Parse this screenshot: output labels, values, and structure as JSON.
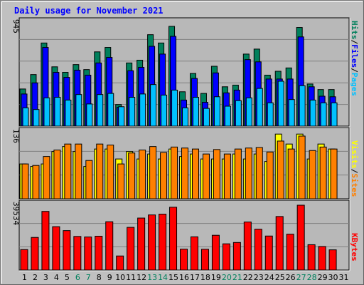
{
  "title": "Daily usage for November 2021",
  "colors": {
    "background": "#C0C0C0",
    "plot_bg": "#B8B8B8",
    "title": "#0000FF",
    "hits": "#00805C",
    "files": "#0000FF",
    "pages": "#00C0FF",
    "visits": "#FFFF00",
    "sites": "#FF8000",
    "kbytes": "#FF0000",
    "weekend_label": "#00805C",
    "weekday_label": "#000000"
  },
  "chart_data": [
    {
      "type": "bar",
      "panel": "hits-files-pages",
      "categories": [
        "1",
        "2",
        "3",
        "4",
        "5",
        "6",
        "7",
        "8",
        "9",
        "10",
        "11",
        "12",
        "13",
        "14",
        "15",
        "16",
        "17",
        "18",
        "19",
        "20",
        "21",
        "22",
        "23",
        "24",
        "25",
        "26",
        "27",
        "28",
        "29",
        "30",
        "31"
      ],
      "weekend_days": [
        "6",
        "7",
        "13",
        "14",
        "20",
        "21",
        "27",
        "28"
      ],
      "max_label": "945",
      "ylim": [
        0,
        945
      ],
      "axis_labels": [
        "Pages",
        "Files",
        "Hits"
      ],
      "series": [
        {
          "name": "Hits",
          "values": [
            335,
            465,
            750,
            535,
            485,
            555,
            510,
            670,
            710,
            195,
            570,
            595,
            825,
            750,
            900,
            310,
            475,
            295,
            540,
            355,
            370,
            650,
            695,
            460,
            495,
            525,
            890,
            380,
            330,
            330,
            0
          ]
        },
        {
          "name": "Files",
          "values": [
            290,
            390,
            710,
            485,
            440,
            505,
            460,
            570,
            620,
            170,
            500,
            530,
            720,
            650,
            810,
            235,
            430,
            215,
            480,
            300,
            325,
            600,
            580,
            425,
            425,
            425,
            805,
            355,
            270,
            265,
            0
          ]
        },
        {
          "name": "Pages",
          "values": [
            165,
            150,
            255,
            260,
            235,
            285,
            200,
            285,
            295,
            175,
            260,
            290,
            375,
            280,
            325,
            165,
            260,
            160,
            265,
            180,
            230,
            255,
            340,
            210,
            405,
            240,
            365,
            235,
            210,
            210,
            0
          ]
        }
      ]
    },
    {
      "type": "bar",
      "panel": "visits-sites",
      "categories": [
        "1",
        "2",
        "3",
        "4",
        "5",
        "6",
        "7",
        "8",
        "9",
        "10",
        "11",
        "12",
        "13",
        "14",
        "15",
        "16",
        "17",
        "18",
        "19",
        "20",
        "21",
        "22",
        "23",
        "24",
        "25",
        "26",
        "27",
        "28",
        "29",
        "30",
        "31"
      ],
      "max_label": "136",
      "ylim": [
        0,
        136
      ],
      "axis_labels": [
        "Sites",
        "Visits"
      ],
      "series": [
        {
          "name": "Visits",
          "values": [
            70,
            65,
            70,
            95,
            105,
            95,
            65,
            100,
            100,
            80,
            95,
            80,
            90,
            80,
            100,
            85,
            90,
            80,
            80,
            80,
            90,
            80,
            90,
            75,
            130,
            110,
            130,
            80,
            110,
            100,
            0
          ]
        },
        {
          "name": "Sites",
          "values": [
            70,
            67,
            85,
            98,
            110,
            110,
            77,
            110,
            108,
            70,
            92,
            98,
            105,
            93,
            104,
            102,
            100,
            90,
            99,
            90,
            100,
            102,
            103,
            94,
            116,
            100,
            126,
            97,
            104,
            100,
            0
          ]
        }
      ]
    },
    {
      "type": "bar",
      "panel": "kbytes",
      "categories": [
        "1",
        "2",
        "3",
        "4",
        "5",
        "6",
        "7",
        "8",
        "9",
        "10",
        "11",
        "12",
        "13",
        "14",
        "15",
        "16",
        "17",
        "18",
        "19",
        "20",
        "21",
        "22",
        "23",
        "24",
        "25",
        "26",
        "27",
        "28",
        "29",
        "30",
        "31"
      ],
      "max_label": "39534",
      "ylim": [
        0,
        39534
      ],
      "axis_labels": [
        "KBytes"
      ],
      "series": [
        {
          "name": "KBytes",
          "values": [
            11960,
            19050,
            34240,
            25330,
            23030,
            19630,
            19310,
            19770,
            28220,
            8220,
            24930,
            30360,
            32190,
            32660,
            36690,
            12200,
            19400,
            12130,
            20310,
            15320,
            16100,
            28060,
            23860,
            19870,
            31270,
            20950,
            37870,
            14800,
            13760,
            11800,
            0
          ]
        }
      ]
    }
  ]
}
